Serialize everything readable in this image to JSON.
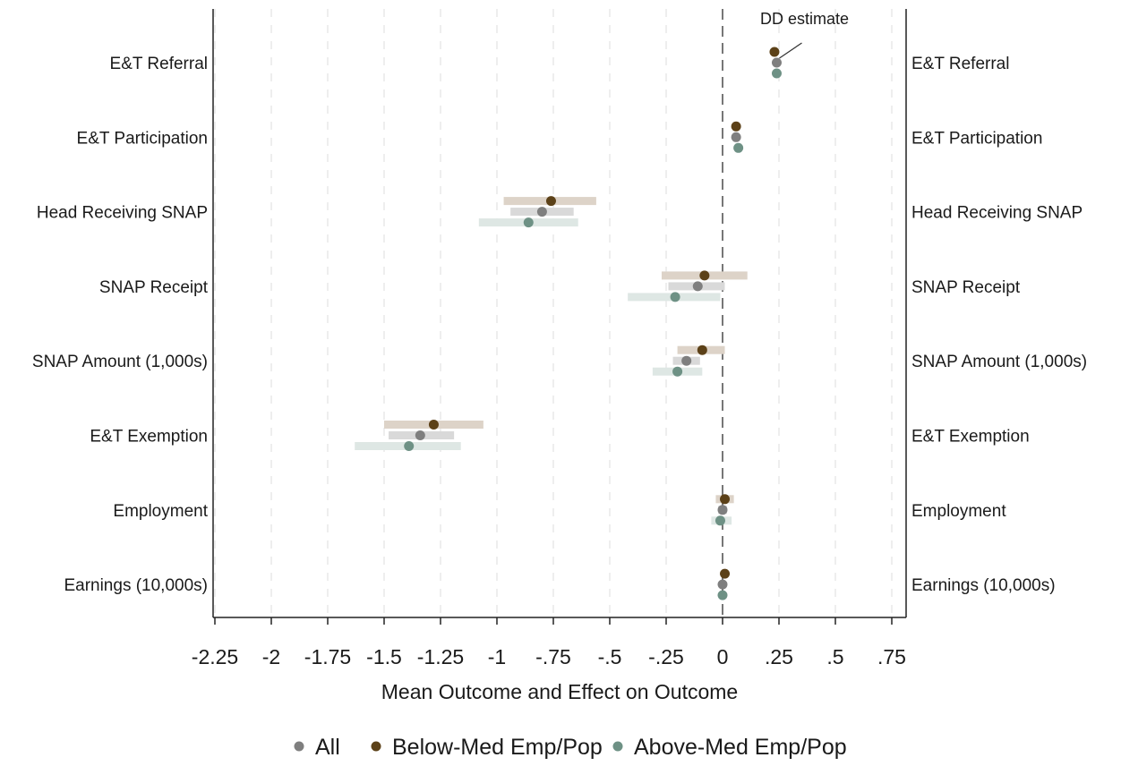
{
  "chart_data": {
    "type": "scatter",
    "subtype": "coefficient-plot-with-confidence-intervals",
    "xlabel": "Mean Outcome and Effect on Outcome",
    "xlim": [
      -2.25,
      0.8
    ],
    "x_ticks": [
      -2.25,
      -2,
      -1.75,
      -1.5,
      -1.25,
      -1,
      -0.75,
      -0.5,
      -0.25,
      0,
      0.25,
      0.5,
      0.75
    ],
    "x_tick_labels": [
      "-2.25",
      "-2",
      "-1.75",
      "-1.5",
      "-1.25",
      "-1",
      "-.75",
      "-.5",
      "-.25",
      "0",
      ".25",
      ".5",
      ".75"
    ],
    "grid": "vertical-dashed",
    "reference_line_x": 0,
    "categories": [
      "E&T Referral",
      "E&T Participation",
      "Head Receiving SNAP",
      "SNAP Receipt",
      "SNAP Amount (1,000s)",
      "E&T Exemption",
      "Employment",
      "Earnings (10,000s)"
    ],
    "annotation": {
      "text": "DD estimate",
      "target_category": 0,
      "target_series": 0
    },
    "legend_position": "bottom",
    "series": [
      {
        "name": "All",
        "color": "#7f7f7f",
        "ci_color": "#d9d9d9",
        "values": [
          0.24,
          0.06,
          -0.8,
          -0.11,
          -0.16,
          -1.34,
          0.0,
          0.0
        ],
        "ci": [
          [
            0.24,
            0.24
          ],
          [
            0.06,
            0.06
          ],
          [
            -0.94,
            -0.66
          ],
          [
            -0.24,
            0.01
          ],
          [
            -0.22,
            -0.1
          ],
          [
            -1.48,
            -1.19
          ],
          [
            -0.02,
            0.02
          ],
          [
            0.0,
            0.0
          ]
        ]
      },
      {
        "name": "Below-Med Emp/Pop",
        "color": "#5c4118",
        "ci_color": "#ddd3c8",
        "values": [
          0.23,
          0.06,
          -0.76,
          -0.08,
          -0.09,
          -1.28,
          0.01,
          0.01
        ],
        "ci": [
          [
            0.23,
            0.23
          ],
          [
            0.06,
            0.06
          ],
          [
            -0.97,
            -0.56
          ],
          [
            -0.27,
            0.11
          ],
          [
            -0.2,
            0.01
          ],
          [
            -1.5,
            -1.06
          ],
          [
            -0.03,
            0.05
          ],
          [
            0.01,
            0.01
          ]
        ]
      },
      {
        "name": "Above-Med Emp/Pop",
        "color": "#6e9185",
        "ci_color": "#dee7e4",
        "values": [
          0.24,
          0.07,
          -0.86,
          -0.21,
          -0.2,
          -1.39,
          -0.01,
          0.0
        ],
        "ci": [
          [
            0.24,
            0.24
          ],
          [
            0.07,
            0.07
          ],
          [
            -1.08,
            -0.64
          ],
          [
            -0.42,
            -0.01
          ],
          [
            -0.31,
            -0.09
          ],
          [
            -1.63,
            -1.16
          ],
          [
            -0.05,
            0.04
          ],
          [
            0.0,
            0.0
          ]
        ]
      }
    ]
  }
}
